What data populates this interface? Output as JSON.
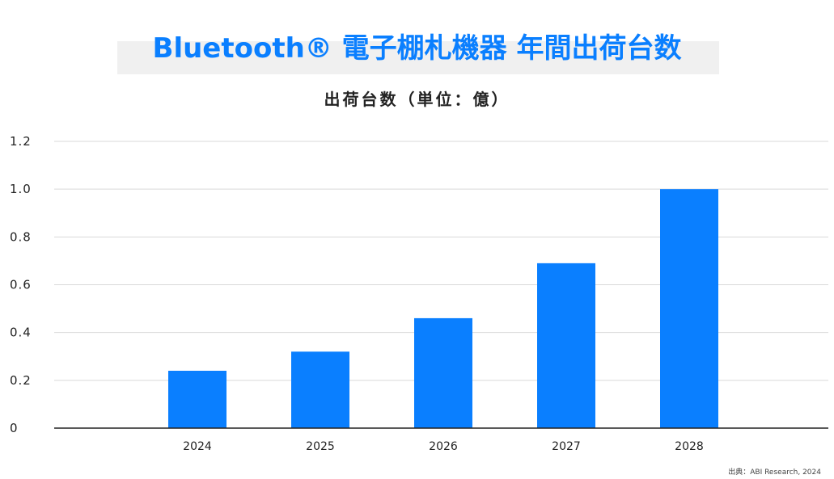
{
  "title": "Bluetooth® 電子棚札機器 年間出荷台数",
  "subtitle": "出荷台数（単位：億）",
  "source": "出典：ABI Research, 2024",
  "colors": {
    "bar": "#0a7fff",
    "grid": "#d9d9d9",
    "axis": "#222222",
    "title": "#0a7fff"
  },
  "chart_data": {
    "type": "bar",
    "categories": [
      "2024",
      "2025",
      "2026",
      "2027",
      "2028"
    ],
    "values": [
      0.24,
      0.32,
      0.46,
      0.69,
      1.0
    ],
    "title": "Bluetooth® 電子棚札機器 年間出荷台数",
    "ylabel": "出荷台数（単位：億）",
    "xlabel": "",
    "ylim": [
      0,
      1.2
    ],
    "yticks": [
      "0",
      "0.2",
      "0.4",
      "0.6",
      "0.8",
      "1.0",
      "1.2"
    ],
    "grid": true,
    "legend": "none"
  }
}
